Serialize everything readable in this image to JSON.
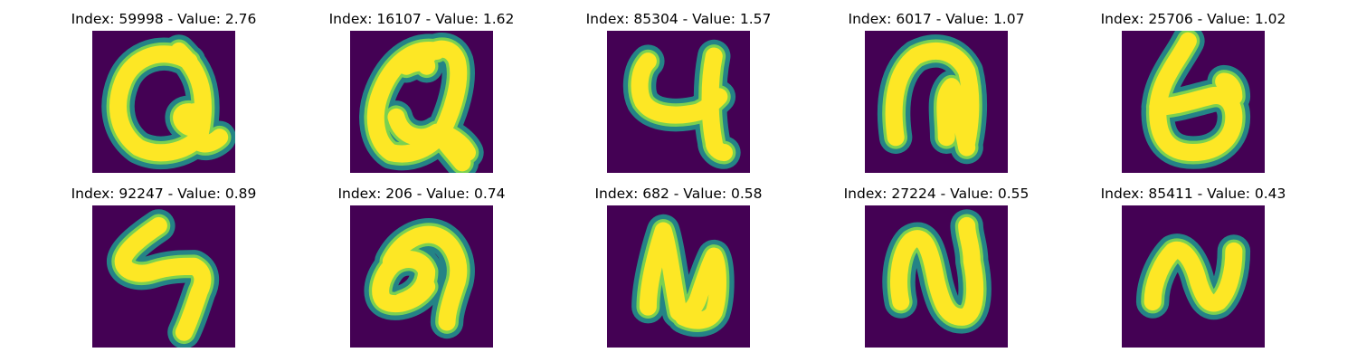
{
  "colors": {
    "background": "#440154",
    "stroke_core": "#fde725",
    "stroke_mid": "#7ad151",
    "stroke_edge": "#21918c"
  },
  "samples": [
    {
      "index": "59998",
      "value": "2.76",
      "title": "Index: 59998 - Value: 2.76",
      "glyph": "q-loop"
    },
    {
      "index": "16107",
      "value": "1.62",
      "title": "Index: 16107 - Value: 1.62",
      "glyph": "q-scribble"
    },
    {
      "index": "85304",
      "value": "1.57",
      "title": "Index: 85304 - Value: 1.57",
      "glyph": "four"
    },
    {
      "index": "6017",
      "value": "1.07",
      "title": "Index: 6017 - Value: 1.07",
      "glyph": "n-arch"
    },
    {
      "index": "25706",
      "value": "1.02",
      "title": "Index: 25706 - Value: 1.02",
      "glyph": "b-bowl"
    },
    {
      "index": "92247",
      "value": "0.89",
      "title": "Index: 92247 - Value: 0.89",
      "glyph": "zigzag"
    },
    {
      "index": "206",
      "value": "0.74",
      "title": "Index: 206 - Value: 0.74",
      "glyph": "hook"
    },
    {
      "index": "682",
      "value": "0.58",
      "title": "Index: 682 - Value: 0.58",
      "glyph": "n-wave"
    },
    {
      "index": "27224",
      "value": "0.55",
      "title": "Index: 27224 - Value: 0.55",
      "glyph": "n-curve"
    },
    {
      "index": "85411",
      "value": "0.43",
      "title": "Index: 85411 - Value: 0.43",
      "glyph": "n-small"
    }
  ]
}
